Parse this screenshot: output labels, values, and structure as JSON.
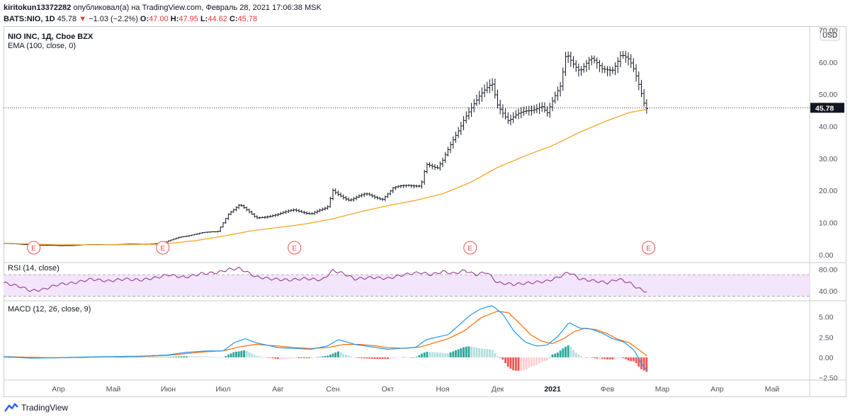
{
  "header": {
    "user": "kiritokun13372282",
    "published": "опубликовал(а) на TradingView.com, Февраль 28, 2021 17:06:38 MSK",
    "symbol": "BATS:NIO, 1D",
    "last": "45.78",
    "change_arrow": "▼",
    "change": "−1.03 (−2.2%)",
    "o_label": "O:",
    "o_value": "47.00",
    "h_label": "H:",
    "h_value": "47.95",
    "l_label": "L:",
    "l_value": "44.62",
    "c_label": "C:",
    "c_value": "45.78"
  },
  "footer": {
    "brand": "TradingView"
  },
  "colors": {
    "ema": "#f5a623",
    "rsi": "#8e2a8e",
    "macd": "#2196f3",
    "signal": "#ff6d00",
    "hist_up": "#26a69a",
    "hist_up_light": "#b2dfdb",
    "hist_down": "#ef5350",
    "hist_down_light": "#ffcdd2",
    "earnings": "#ef5350",
    "rsi_band": "#f3e5fb"
  },
  "chart_data": [
    {
      "type": "ohlc",
      "title": "NIO INC, 1Д, Cboe BZX",
      "indicator": "EMA (100, close, 0)",
      "currency": "USD",
      "last_price": 45.78,
      "last_price_label": "45.78",
      "ylim": [
        -2,
        69
      ],
      "yticks": [
        0,
        10,
        20,
        30,
        40,
        50,
        60,
        70
      ],
      "ytick_labels": [
        "0.00",
        "10.00",
        "20.00",
        "30.00",
        "40.00",
        "50.00",
        "60.00",
        "70.00"
      ],
      "x_range_months": [
        0,
        14.6
      ],
      "xticks": [
        1,
        2,
        3,
        4,
        5,
        6,
        7,
        8,
        9,
        10,
        11,
        12,
        13,
        14
      ],
      "xtick_labels": [
        "Апр",
        "Май",
        "Июн",
        "Июл",
        "Авг",
        "Сен",
        "Окт",
        "Ноя",
        "Дек",
        "2021",
        "Фев",
        "Мар",
        "Апр",
        "Май"
      ],
      "close_anchors_month_value": [
        [
          0,
          3.5
        ],
        [
          0.5,
          3.1
        ],
        [
          1,
          2.8
        ],
        [
          1.5,
          3.1
        ],
        [
          2,
          3.2
        ],
        [
          2.5,
          3.3
        ],
        [
          2.9,
          3.6
        ],
        [
          3.2,
          5.5
        ],
        [
          3.6,
          6.8
        ],
        [
          3.9,
          7.2
        ],
        [
          4.1,
          13
        ],
        [
          4.3,
          15.5
        ],
        [
          4.6,
          11.5
        ],
        [
          5.0,
          12.5
        ],
        [
          5.3,
          14.0
        ],
        [
          5.6,
          12.8
        ],
        [
          5.9,
          14.5
        ],
        [
          6.0,
          20.0
        ],
        [
          6.3,
          17.0
        ],
        [
          6.6,
          18.8
        ],
        [
          6.9,
          17.5
        ],
        [
          7.1,
          20.8
        ],
        [
          7.4,
          21.5
        ],
        [
          7.6,
          21.8
        ],
        [
          7.7,
          28.5
        ],
        [
          7.9,
          26.5
        ],
        [
          8.0,
          29.0
        ],
        [
          8.2,
          36.5
        ],
        [
          8.4,
          43.0
        ],
        [
          8.6,
          47.0
        ],
        [
          8.9,
          54.0
        ],
        [
          9.0,
          47.5
        ],
        [
          9.2,
          41.5
        ],
        [
          9.5,
          44.5
        ],
        [
          9.8,
          47.0
        ],
        [
          9.9,
          44.0
        ],
        [
          10.15,
          52.0
        ],
        [
          10.25,
          63.0
        ],
        [
          10.5,
          58.0
        ],
        [
          10.7,
          60.5
        ],
        [
          10.9,
          57.5
        ],
        [
          11.1,
          58.5
        ],
        [
          11.25,
          63.0
        ],
        [
          11.4,
          60.0
        ],
        [
          11.5,
          56.0
        ],
        [
          11.6,
          51.0
        ],
        [
          11.68,
          46.5
        ],
        [
          11.72,
          45.78
        ]
      ],
      "ema_anchors_month_value": [
        [
          0,
          3.6
        ],
        [
          1,
          3.1
        ],
        [
          2,
          3.1
        ],
        [
          2.9,
          3.3
        ],
        [
          3.5,
          4.4
        ],
        [
          4.0,
          5.8
        ],
        [
          4.5,
          7.4
        ],
        [
          5.0,
          8.5
        ],
        [
          5.5,
          9.6
        ],
        [
          6.0,
          11.2
        ],
        [
          6.5,
          13.4
        ],
        [
          7.0,
          15.3
        ],
        [
          7.5,
          16.9
        ],
        [
          8.0,
          19.0
        ],
        [
          8.5,
          22.5
        ],
        [
          9.0,
          27.2
        ],
        [
          9.5,
          30.8
        ],
        [
          10.0,
          34.0
        ],
        [
          10.5,
          38.2
        ],
        [
          11.0,
          41.8
        ],
        [
          11.4,
          44.3
        ],
        [
          11.72,
          45.3
        ]
      ],
      "earnings_markers_month": [
        0.55,
        2.9,
        5.3,
        8.5,
        11.75
      ],
      "earnings_label": "E"
    },
    {
      "type": "line",
      "title": "RSI (14, close)",
      "ylim": [
        24,
        90
      ],
      "band": [
        30,
        70
      ],
      "yticks": [
        40,
        80
      ],
      "ytick_labels": [
        "40.00",
        "80.00"
      ],
      "anchors_month_value": [
        [
          0,
          55
        ],
        [
          0.3,
          48
        ],
        [
          0.5,
          40
        ],
        [
          0.7,
          42
        ],
        [
          1.0,
          52
        ],
        [
          1.3,
          55
        ],
        [
          1.6,
          62
        ],
        [
          1.9,
          58
        ],
        [
          2.2,
          62
        ],
        [
          2.5,
          60
        ],
        [
          2.8,
          65
        ],
        [
          3.0,
          70
        ],
        [
          3.3,
          65
        ],
        [
          3.6,
          72
        ],
        [
          3.9,
          74
        ],
        [
          4.1,
          80
        ],
        [
          4.3,
          82
        ],
        [
          4.6,
          66
        ],
        [
          4.9,
          62
        ],
        [
          5.2,
          60
        ],
        [
          5.5,
          63
        ],
        [
          5.8,
          60
        ],
        [
          6.0,
          78
        ],
        [
          6.2,
          72
        ],
        [
          6.4,
          62
        ],
        [
          6.7,
          65
        ],
        [
          7.0,
          63
        ],
        [
          7.2,
          68
        ],
        [
          7.4,
          72
        ],
        [
          7.6,
          74
        ],
        [
          7.8,
          70
        ],
        [
          8.0,
          76
        ],
        [
          8.2,
          72
        ],
        [
          8.4,
          78
        ],
        [
          8.6,
          70
        ],
        [
          8.8,
          75
        ],
        [
          9.0,
          55
        ],
        [
          9.3,
          52
        ],
        [
          9.6,
          55
        ],
        [
          9.9,
          58
        ],
        [
          10.1,
          65
        ],
        [
          10.3,
          75
        ],
        [
          10.5,
          62
        ],
        [
          10.8,
          58
        ],
        [
          11.0,
          55
        ],
        [
          11.2,
          62
        ],
        [
          11.4,
          55
        ],
        [
          11.55,
          45
        ],
        [
          11.72,
          38
        ]
      ]
    },
    {
      "type": "line+histogram",
      "title": "MACD (12, 26, close, 9)",
      "ylim": [
        -2.8,
        6.8
      ],
      "yticks": [
        -2.5,
        0,
        2.5,
        5
      ],
      "ytick_labels": [
        "−2.50",
        "0.00",
        "2.50",
        "5.00"
      ],
      "macd_anchors_month_value": [
        [
          0,
          0.1
        ],
        [
          0.5,
          -0.1
        ],
        [
          1,
          -0.05
        ],
        [
          1.5,
          0.05
        ],
        [
          2,
          0.1
        ],
        [
          2.5,
          0.15
        ],
        [
          3,
          0.3
        ],
        [
          3.3,
          0.6
        ],
        [
          3.7,
          0.8
        ],
        [
          4.0,
          0.8
        ],
        [
          4.2,
          1.8
        ],
        [
          4.4,
          2.3
        ],
        [
          4.6,
          1.8
        ],
        [
          5.0,
          1.2
        ],
        [
          5.3,
          1.1
        ],
        [
          5.6,
          1.0
        ],
        [
          5.9,
          1.4
        ],
        [
          6.1,
          2.2
        ],
        [
          6.4,
          1.6
        ],
        [
          6.7,
          1.3
        ],
        [
          7.0,
          1.0
        ],
        [
          7.2,
          1.1
        ],
        [
          7.5,
          1.2
        ],
        [
          7.7,
          2.2
        ],
        [
          7.9,
          2.5
        ],
        [
          8.1,
          2.8
        ],
        [
          8.3,
          4.0
        ],
        [
          8.5,
          5.2
        ],
        [
          8.7,
          6.0
        ],
        [
          8.9,
          6.4
        ],
        [
          9.1,
          5.3
        ],
        [
          9.3,
          3.2
        ],
        [
          9.5,
          1.9
        ],
        [
          9.7,
          1.4
        ],
        [
          9.9,
          1.5
        ],
        [
          10.1,
          2.6
        ],
        [
          10.3,
          4.3
        ],
        [
          10.5,
          3.6
        ],
        [
          10.7,
          3.5
        ],
        [
          10.9,
          3.0
        ],
        [
          11.1,
          2.3
        ],
        [
          11.3,
          1.9
        ],
        [
          11.5,
          0.8
        ],
        [
          11.6,
          -0.6
        ],
        [
          11.72,
          -1.6
        ]
      ],
      "signal_anchors_month_value": [
        [
          0,
          0.1
        ],
        [
          0.5,
          0.0
        ],
        [
          1,
          -0.05
        ],
        [
          1.5,
          0.0
        ],
        [
          2,
          0.08
        ],
        [
          2.5,
          0.12
        ],
        [
          3,
          0.25
        ],
        [
          3.3,
          0.45
        ],
        [
          3.7,
          0.7
        ],
        [
          4.0,
          0.8
        ],
        [
          4.3,
          1.3
        ],
        [
          4.6,
          1.6
        ],
        [
          5.0,
          1.4
        ],
        [
          5.3,
          1.2
        ],
        [
          5.6,
          1.1
        ],
        [
          5.9,
          1.2
        ],
        [
          6.2,
          1.6
        ],
        [
          6.5,
          1.6
        ],
        [
          6.8,
          1.4
        ],
        [
          7.0,
          1.2
        ],
        [
          7.3,
          1.1
        ],
        [
          7.6,
          1.3
        ],
        [
          7.9,
          1.9
        ],
        [
          8.1,
          2.3
        ],
        [
          8.4,
          3.3
        ],
        [
          8.7,
          4.9
        ],
        [
          9.0,
          5.7
        ],
        [
          9.2,
          5.5
        ],
        [
          9.4,
          4.2
        ],
        [
          9.6,
          2.8
        ],
        [
          9.8,
          2.0
        ],
        [
          10.0,
          1.7
        ],
        [
          10.2,
          2.3
        ],
        [
          10.4,
          3.2
        ],
        [
          10.6,
          3.6
        ],
        [
          10.8,
          3.4
        ],
        [
          11.0,
          2.9
        ],
        [
          11.2,
          2.2
        ],
        [
          11.4,
          1.8
        ],
        [
          11.6,
          0.8
        ],
        [
          11.72,
          0.2
        ]
      ]
    }
  ]
}
